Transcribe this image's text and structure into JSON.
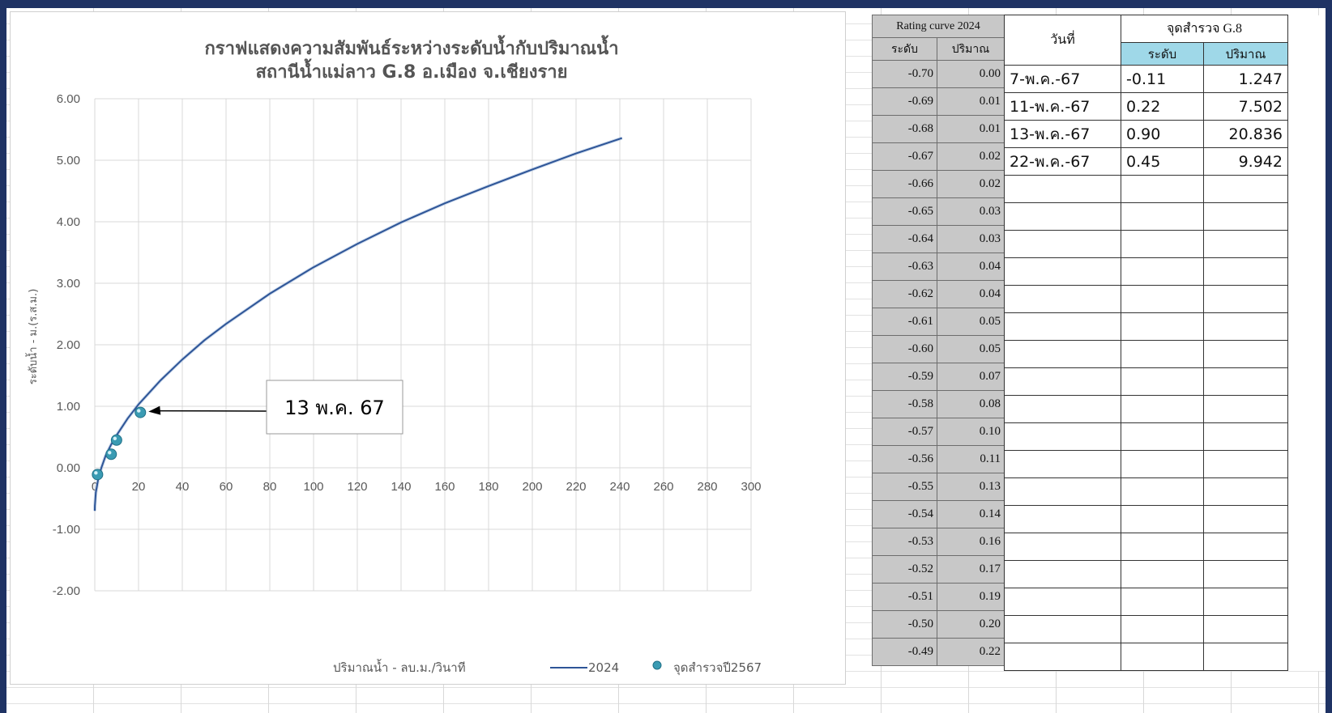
{
  "chart_data": {
    "type": "line",
    "title": [
      "กราฟแสดงความสัมพันธ์ระหว่างระดับน้ำกับปริมาณน้ำ",
      "สถานีน้ำแม่ลาว  G.8  อ.เมือง  จ.เชียงราย"
    ],
    "xlabel": "ปริมาณน้ำ - ลบ.ม./วินาที",
    "ylabel": "ระดับน้ำ - ม.(ร.ส.ม.)",
    "xlim": [
      0,
      300
    ],
    "ylim": [
      -2,
      6
    ],
    "x_ticks": [
      "0",
      "20",
      "40",
      "60",
      "80",
      "100",
      "120",
      "140",
      "160",
      "180",
      "200",
      "220",
      "240",
      "260",
      "280",
      "300"
    ],
    "y_ticks": [
      "6.00",
      "5.00",
      "4.00",
      "3.00",
      "2.00",
      "1.00",
      "0.00",
      "-1.00",
      "-2.00"
    ],
    "grid": true,
    "legend_position": "bottom",
    "series": [
      {
        "name": "2024",
        "type": "line",
        "color": "#2e5597",
        "x": [
          0,
          0.05,
          0.5,
          1.5,
          3,
          5,
          7.5,
          10,
          15,
          20,
          30,
          40,
          50,
          60,
          80,
          100,
          120,
          140,
          160,
          180,
          200,
          220,
          241
        ],
        "y": [
          -0.7,
          -0.62,
          -0.4,
          -0.2,
          0.0,
          0.2,
          0.38,
          0.53,
          0.8,
          1.03,
          1.42,
          1.76,
          2.07,
          2.34,
          2.83,
          3.26,
          3.64,
          3.99,
          4.3,
          4.58,
          4.85,
          5.11,
          5.36
        ]
      },
      {
        "name": "จุดสำรวจปี2567",
        "type": "scatter",
        "color": "#3a9bb3",
        "x": [
          1.247,
          7.502,
          20.836,
          9.942
        ],
        "y": [
          -0.11,
          0.22,
          0.9,
          0.45
        ]
      }
    ],
    "annotations": [
      {
        "text": "13 พ.ค. 67",
        "x": 20.836,
        "y": 0.9
      }
    ]
  },
  "rating_table": {
    "title": "Rating curve 2024",
    "headers": [
      "ระดับ",
      "ปริมาณ"
    ],
    "rows": [
      [
        "-0.70",
        "0.00"
      ],
      [
        "-0.69",
        "0.01"
      ],
      [
        "-0.68",
        "0.01"
      ],
      [
        "-0.67",
        "0.02"
      ],
      [
        "-0.66",
        "0.02"
      ],
      [
        "-0.65",
        "0.03"
      ],
      [
        "-0.64",
        "0.03"
      ],
      [
        "-0.63",
        "0.04"
      ],
      [
        "-0.62",
        "0.04"
      ],
      [
        "-0.61",
        "0.05"
      ],
      [
        "-0.60",
        "0.05"
      ],
      [
        "-0.59",
        "0.07"
      ],
      [
        "-0.58",
        "0.08"
      ],
      [
        "-0.57",
        "0.10"
      ],
      [
        "-0.56",
        "0.11"
      ],
      [
        "-0.55",
        "0.13"
      ],
      [
        "-0.54",
        "0.14"
      ],
      [
        "-0.53",
        "0.16"
      ],
      [
        "-0.52",
        "0.17"
      ],
      [
        "-0.51",
        "0.19"
      ],
      [
        "-0.50",
        "0.20"
      ],
      [
        "-0.49",
        "0.22"
      ]
    ]
  },
  "survey_table": {
    "date_header": "วันที่",
    "group_header": "จุดสำรวจ G.8",
    "level_header": "ระดับ",
    "flow_header": "ปริมาณ",
    "rows": [
      [
        "7-พ.ค.-67",
        "-0.11",
        "1.247"
      ],
      [
        "11-พ.ค.-67",
        "0.22",
        "7.502"
      ],
      [
        "13-พ.ค.-67",
        "0.90",
        "20.836"
      ],
      [
        "22-พ.ค.-67",
        "0.45",
        "9.942"
      ]
    ],
    "empty_rows": 18
  }
}
